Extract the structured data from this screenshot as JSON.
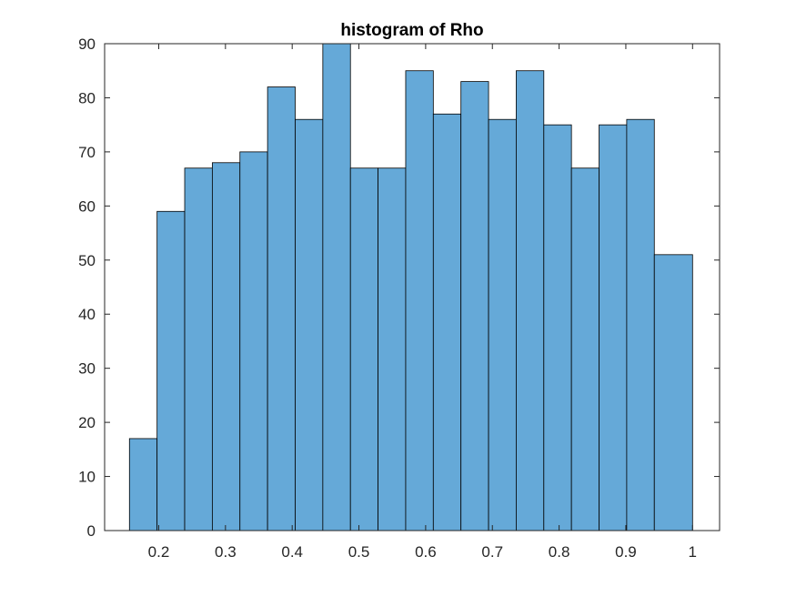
{
  "chart_data": {
    "type": "bar",
    "title": "histogram of Rho",
    "xlabel": "",
    "ylabel": "",
    "xlim": [
      0.1189,
      1.0405
    ],
    "ylim": [
      0,
      90
    ],
    "bin_edges": [
      0.1561,
      0.1975,
      0.2389,
      0.2803,
      0.3217,
      0.3631,
      0.4045,
      0.4459,
      0.4873,
      0.5287,
      0.5701,
      0.6115,
      0.6529,
      0.6943,
      0.7357,
      0.7771,
      0.8185,
      0.8599,
      0.9013,
      0.9427,
      1.0
    ],
    "values": [
      17,
      59,
      67,
      68,
      70,
      82,
      76,
      90,
      67,
      67,
      85,
      77,
      83,
      76,
      85,
      75,
      67,
      75,
      76,
      51
    ],
    "x_ticks": [
      0.2,
      0.3,
      0.4,
      0.5,
      0.6,
      0.7,
      0.8,
      0.9,
      1
    ],
    "x_tick_labels": [
      "0.2",
      "0.3",
      "0.4",
      "0.5",
      "0.6",
      "0.7",
      "0.8",
      "0.9",
      "1"
    ],
    "y_ticks": [
      0,
      10,
      20,
      30,
      40,
      50,
      60,
      70,
      80,
      90
    ],
    "y_tick_labels": [
      "0",
      "10",
      "20",
      "30",
      "40",
      "50",
      "60",
      "70",
      "80",
      "90"
    ],
    "grid": false,
    "bar_color": "#65a9d8",
    "edge_color": "#000000"
  }
}
